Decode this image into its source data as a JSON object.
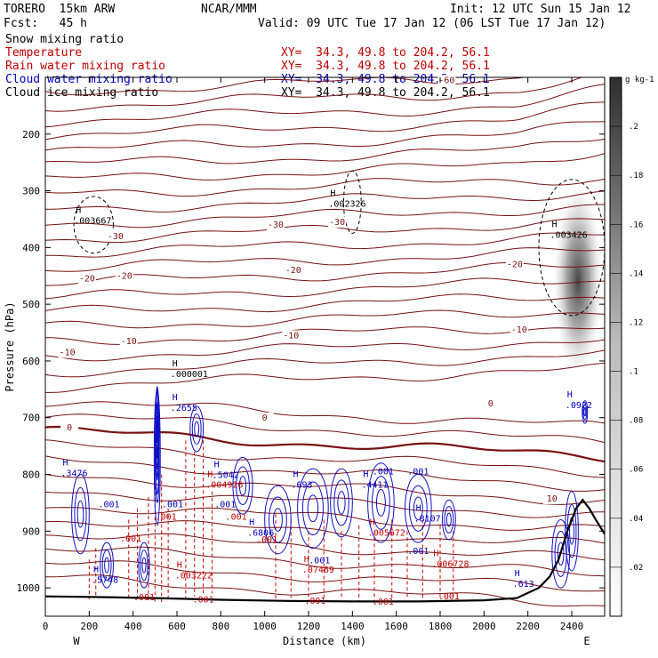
{
  "header": {
    "model": "TORERO  15km ARW",
    "org": "NCAR/MMM",
    "init": "Init: 12 UTC Sun 15 Jan 12",
    "fcst": "Fcst:   45 h",
    "valid": "Valid: 09 UTC Tue 17 Jan 12 (06 LST Tue 17 Jan 12)"
  },
  "legend_rows": [
    {
      "field": "Snow mixing ratio",
      "xy": "",
      "color": "#000000"
    },
    {
      "field": "Temperature",
      "xy": "XY=  34.3, 49.8 to 204.2, 56.1",
      "color": "#c00000"
    },
    {
      "field": "Rain water mixing ratio",
      "xy": "XY=  34.3, 49.8 to 204.2, 56.1",
      "color": "#c00000"
    },
    {
      "field": "Cloud water mixing ratio",
      "xy": "XY=  34.3, 49.8 to 204.2, 56.1",
      "color": "#0000c0"
    },
    {
      "field": "Cloud ice mixing ratio",
      "xy": "XY=  34.3, 49.8 to 204.2, 56.1",
      "color": "#000000"
    }
  ],
  "chart_data": {
    "type": "contour",
    "xlabel": "Distance (km)",
    "ylabel": "Pressure (hPa)",
    "xlim": [
      0,
      2550
    ],
    "ylim": [
      1050,
      100
    ],
    "x_ticks": [
      "0",
      "200",
      "400",
      "600",
      "800",
      "1000",
      "1200",
      "1400",
      "1600",
      "1800",
      "2000",
      "2200",
      "2400"
    ],
    "x_tick_values": [
      0,
      200,
      400,
      600,
      800,
      1000,
      1200,
      1400,
      1600,
      1800,
      2000,
      2200,
      2400
    ],
    "y_ticks": [
      "200",
      "300",
      "400",
      "500",
      "600",
      "700",
      "800",
      "900",
      "1000"
    ],
    "y_tick_values": [
      200,
      300,
      400,
      500,
      600,
      700,
      800,
      900,
      1000
    ],
    "x_end_labels": {
      "left": "W",
      "right": "E"
    },
    "colorbar": {
      "unit": "g kg-1",
      "labels": [
        ".02",
        ".04",
        ".06",
        ".08",
        ".1",
        ".12",
        ".14",
        ".16",
        ".18",
        ".2"
      ],
      "values": [
        0.02,
        0.04,
        0.06,
        0.08,
        0.1,
        0.12,
        0.14,
        0.16,
        0.18,
        0.2
      ]
    },
    "temperature_labels": [
      {
        "text": "-60",
        "x": 1830,
        "p": 110
      },
      {
        "text": "-30",
        "x": 320,
        "p": 385
      },
      {
        "text": "-30",
        "x": 1050,
        "p": 365
      },
      {
        "text": "-30",
        "x": 1330,
        "p": 360
      },
      {
        "text": "-20",
        "x": 190,
        "p": 460
      },
      {
        "text": "-20",
        "x": 360,
        "p": 455
      },
      {
        "text": "-20",
        "x": 1130,
        "p": 445
      },
      {
        "text": "-20",
        "x": 2140,
        "p": 435
      },
      {
        "text": "-10",
        "x": 100,
        "p": 590
      },
      {
        "text": "-10",
        "x": 380,
        "p": 570
      },
      {
        "text": "-10",
        "x": 1120,
        "p": 560
      },
      {
        "text": "-10",
        "x": 2160,
        "p": 550
      },
      {
        "text": "0",
        "x": 110,
        "p": 722
      },
      {
        "text": "0",
        "x": 1000,
        "p": 705
      },
      {
        "text": "0",
        "x": 2030,
        "p": 680
      },
      {
        "text": "10",
        "x": 2310,
        "p": 848
      }
    ],
    "highs": [
      {
        "text": ".003667",
        "x": 220,
        "p": 355,
        "color": "#000000"
      },
      {
        "text": ".002326",
        "x": 1380,
        "p": 325,
        "color": "#000000"
      },
      {
        "text": ".003426",
        "x": 2390,
        "p": 380,
        "color": "#000000"
      },
      {
        "text": ".000001",
        "x": 660,
        "p": 625,
        "color": "#000000"
      },
      {
        "text": ".2655",
        "x": 660,
        "p": 685,
        "color": "#0000c0"
      },
      {
        "text": ".0922",
        "x": 2460,
        "p": 680,
        "color": "#0000c0"
      },
      {
        "text": ".3476",
        "x": 160,
        "p": 800,
        "color": "#0000c0"
      },
      {
        "text": ".5042",
        "x": 850,
        "p": 803,
        "color": "#0000c0"
      },
      {
        "text": ".004926",
        "x": 820,
        "p": 820,
        "color": "#c00000"
      },
      {
        "text": ".693",
        "x": 1210,
        "p": 820,
        "color": "#0000c0"
      },
      {
        "text": ".4411",
        "x": 1530,
        "p": 820,
        "color": "#0000c0"
      },
      {
        "text": ".8107",
        "x": 1770,
        "p": 880,
        "color": "#0000c0"
      },
      {
        "text": ".6806",
        "x": 1010,
        "p": 905,
        "color": "#0000c0"
      },
      {
        "text": ".005672",
        "x": 1560,
        "p": 905,
        "color": "#c00000"
      },
      {
        "text": ".003222",
        "x": 680,
        "p": 980,
        "color": "#c00000"
      },
      {
        "text": ".07469",
        "x": 1260,
        "p": 970,
        "color": "#c00000"
      },
      {
        "text": ".006728",
        "x": 1850,
        "p": 960,
        "color": "#c00000"
      },
      {
        "text": ".5748",
        "x": 300,
        "p": 988,
        "color": "#0000c0"
      },
      {
        "text": ".613",
        "x": 2220,
        "p": 995,
        "color": "#0000c0"
      }
    ],
    "minor_labels": [
      {
        "text": ".001",
        "x": 290,
        "p": 858,
        "color": "#0000c0"
      },
      {
        "text": ".001",
        "x": 580,
        "p": 858,
        "color": "#0000c0"
      },
      {
        "text": ".001",
        "x": 820,
        "p": 858,
        "color": "#0000c0"
      },
      {
        "text": ".001",
        "x": 1540,
        "p": 800,
        "color": "#0000c0"
      },
      {
        "text": ".001",
        "x": 1700,
        "p": 800,
        "color": "#0000c0"
      },
      {
        "text": ".001",
        "x": 1250,
        "p": 957,
        "color": "#0000c0"
      },
      {
        "text": ".001",
        "x": 1700,
        "p": 940,
        "color": "#0000c0"
      },
      {
        "text": ".001",
        "x": 870,
        "p": 880,
        "color": "#c00000"
      },
      {
        "text": ".001",
        "x": 390,
        "p": 918,
        "color": "#c00000"
      },
      {
        "text": ".001",
        "x": 1010,
        "p": 920,
        "color": "#c00000"
      },
      {
        "text": ".001",
        "x": 450,
        "p": 1022,
        "color": "#c00000"
      },
      {
        "text": ".001",
        "x": 720,
        "p": 1026,
        "color": "#c00000"
      },
      {
        "text": ".001",
        "x": 1230,
        "p": 1028,
        "color": "#c00000"
      },
      {
        "text": ".001",
        "x": 1540,
        "p": 1030,
        "color": "#c00000"
      },
      {
        "text": ".001",
        "x": 1840,
        "p": 1020,
        "color": "#c00000"
      },
      {
        "text": ".001",
        "x": 550,
        "p": 880,
        "color": "#c00000"
      }
    ]
  }
}
